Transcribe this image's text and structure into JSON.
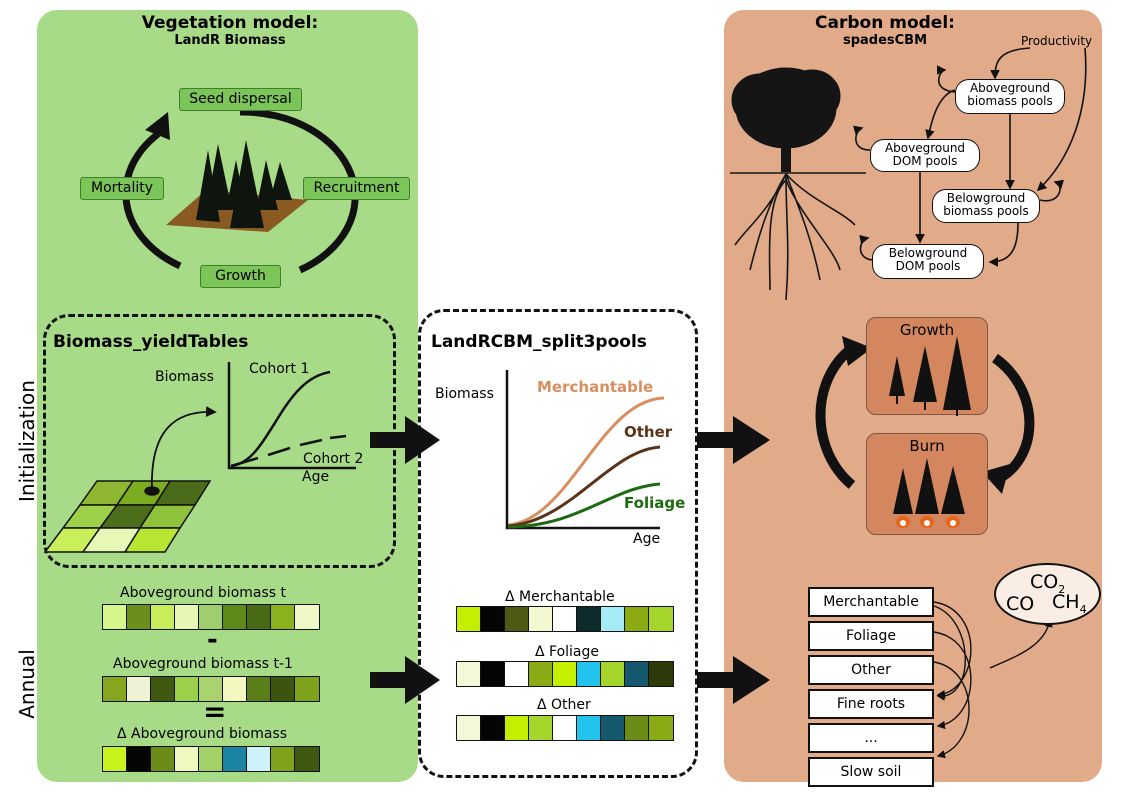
{
  "vegetation": {
    "title": "Vegetation model:",
    "subtitle": "LandR Biomass",
    "cycle": [
      "Seed dispersal",
      "Recruitment",
      "Growth",
      "Mortality"
    ]
  },
  "carbon": {
    "title": "Carbon model:",
    "subtitle": "spadesCBM",
    "productivity": "Productivity",
    "pools": {
      "ag_biomass": [
        "Aboveground",
        "biomass pools"
      ],
      "ag_dom": [
        "Aboveground",
        "DOM pools"
      ],
      "bg_biomass": [
        "Belowground",
        "biomass pools"
      ],
      "bg_dom": [
        "Belowground",
        "DOM pools"
      ]
    },
    "growth_card": "Growth",
    "burn_card": "Burn",
    "stack": [
      "Merchantable",
      "Foliage",
      "Other",
      "Fine roots",
      "...",
      "Slow soil"
    ],
    "gases": {
      "co2": "CO",
      "co2_sub": "2",
      "co": "CO",
      "ch4": "CH",
      "ch4_sub": "4"
    }
  },
  "side_labels": {
    "init": "Initialization",
    "annual": "Annual"
  },
  "yield_tables": {
    "title": "Biomass_yieldTables",
    "ylabel": "Biomass",
    "xlabel": "Age",
    "cohort1": "Cohort 1",
    "cohort2": "Cohort 2"
  },
  "split3pools": {
    "title": "LandRCBM_split3pools",
    "ylabel": "Biomass",
    "xlabel": "Age",
    "series": [
      {
        "name": "Merchantable",
        "color": "#d98e5f"
      },
      {
        "name": "Other",
        "color": "#5a3418"
      },
      {
        "name": "Foliage",
        "color": "#1d6a10"
      }
    ]
  },
  "annual": {
    "ag_t": "Aboveground biomass t",
    "minus": "-",
    "ag_t1": "Aboveground biomass t-1",
    "equals": "=",
    "delta_ag": "Δ Aboveground biomass",
    "delta_merch": "Δ Merchantable",
    "delta_foliage": "Δ Foliage",
    "delta_other": "Δ Other"
  },
  "colors": {
    "veg_panel": "#a8db88",
    "carbon_panel": "#e1aa89",
    "cycle_box": "#7cc558"
  },
  "strips": {
    "ag_t": [
      "#d6f58a",
      "#6b8f1d",
      "#c7ee5a",
      "#e8f6b5",
      "#9fcf6c",
      "#5e8a1a",
      "#4a6b16",
      "#8ab21e",
      "#f0f8c8"
    ],
    "ag_t1": [
      "#86a61f",
      "#eef3d8",
      "#3f5a10",
      "#9ccf4a",
      "#a9d36f",
      "#f2f8c0",
      "#5a7f18",
      "#3b5510",
      "#7fa21c"
    ],
    "delta_ag": [
      "#c8f21d",
      "#050505",
      "#6c8c18",
      "#f0f8c0",
      "#a4d06a",
      "#1b86a3",
      "#cdf2fa",
      "#7fa21c",
      "#3f5a10"
    ],
    "delta_merch": [
      "#c4f000",
      "#050505",
      "#4e5a14",
      "#f4f8d0",
      "#ffffff",
      "#0d2a2c",
      "#a6ecf8",
      "#8aab14",
      "#a5d42a"
    ],
    "delta_foliage": [
      "#f2f8d8",
      "#050505",
      "#ffffff",
      "#8aab14",
      "#c4f000",
      "#22c4ee",
      "#a5d42a",
      "#14596e",
      "#2e3a0a"
    ],
    "delta_other": [
      "#f2f8d8",
      "#050505",
      "#c4f000",
      "#a5d42a",
      "#ffffff",
      "#22c4ee",
      "#14596e",
      "#6c8c18",
      "#8aab14"
    ]
  }
}
